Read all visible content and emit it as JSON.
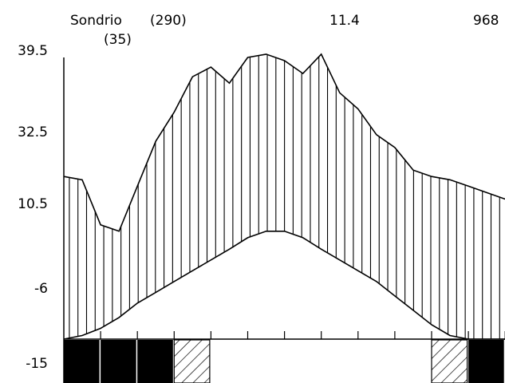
{
  "header": {
    "station": "Sondrio",
    "altitude": "(290)",
    "years": "(35)",
    "mean_temp": "11.4",
    "annual_precip": "968"
  },
  "y_axis_labels": [
    "39.5",
    "32.5",
    "10.5",
    "-6",
    "-15"
  ],
  "chart_data": {
    "type": "area",
    "title": "",
    "x": [
      0,
      0.5,
      1,
      1.5,
      2,
      2.5,
      3,
      3.5,
      4,
      4.5,
      5,
      5.5,
      6,
      6.5,
      7,
      7.5,
      8,
      8.5,
      9,
      9.5,
      10,
      10.5,
      11,
      11.5,
      12
    ],
    "series": [
      {
        "values": [
          21.5,
          21.0,
          14.0,
          13.0,
          20.0,
          27.0,
          31.5,
          37.0,
          38.5,
          36.0,
          40.0,
          40.5,
          39.5,
          37.5,
          40.5,
          34.5,
          32.0,
          28.0,
          26.0,
          22.5,
          21.5,
          21.0,
          20.0,
          19.0,
          18.0
        ]
      },
      {
        "values": [
          -15,
          -14,
          -12,
          -9,
          -5,
          -2,
          1,
          4,
          7,
          10,
          12,
          13,
          13,
          12,
          10,
          7,
          4,
          1,
          -3,
          -7,
          -11,
          -14,
          -15,
          -15,
          -15
        ]
      }
    ],
    "ylim": [
      -15,
      39.5
    ],
    "frost_months": {
      "certain": [
        1,
        2,
        3,
        12
      ],
      "probable": [
        4,
        11
      ]
    },
    "grid": false
  }
}
